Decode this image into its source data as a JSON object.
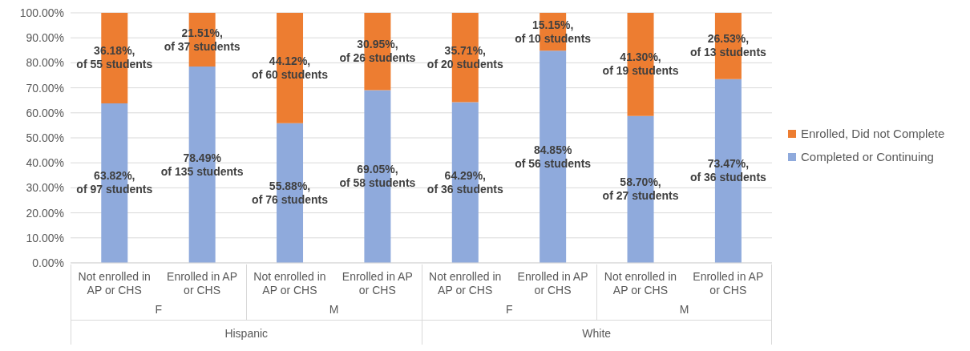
{
  "chart_data": {
    "type": "bar",
    "stacked": true,
    "categories": [
      "Not enrolled in AP or CHS",
      "Enrolled in AP or CHS",
      "Not enrolled in AP or CHS",
      "Enrolled in AP or CHS",
      "Not enrolled in AP or CHS",
      "Enrolled in AP or CHS",
      "Not enrolled in AP or CHS",
      "Enrolled in AP or CHS"
    ],
    "series": [
      {
        "name": "Completed or Continuing",
        "color": "#8faadc",
        "values": [
          63.82,
          78.49,
          55.88,
          69.05,
          64.29,
          84.85,
          58.7,
          73.47
        ],
        "value_labels": [
          "63.82%,\nof 97 students",
          "78.49%\nof 135 students",
          "55.88%,\nof 76 students",
          "69.05%,\nof 58 students",
          "64.29%,\nof 36 students",
          "84.85%\nof 56 students",
          "58.70%,\nof 27 students",
          "73.47%,\nof 36 students"
        ]
      },
      {
        "name": "Enrolled, Did not Complete",
        "color": "#ed7d31",
        "values": [
          36.18,
          21.51,
          44.12,
          30.95,
          35.71,
          15.15,
          41.3,
          26.53
        ],
        "value_labels": [
          "36.18%,\nof 55 students",
          "21.51%,\nof 37 students",
          "44.12%,\nof 60 students",
          "30.95%,\nof 26 students",
          "35.71%,\nof 20 students",
          "15.15%,\nof 10 students",
          "41.30%,\nof 19 students",
          "26.53%,\nof 13 students"
        ]
      }
    ],
    "annotations": [
      "F",
      "M",
      "F",
      "M",
      "Hispanic",
      "White"
    ],
    "ylim": [
      0,
      100
    ],
    "yticks": [
      {
        "value": 0,
        "label": "0.00%"
      },
      {
        "value": 10,
        "label": "10.00%"
      },
      {
        "value": 20,
        "label": "20.00%"
      },
      {
        "value": 30,
        "label": "30.00%"
      },
      {
        "value": 40,
        "label": "40.00%"
      },
      {
        "value": 50,
        "label": "50.00%"
      },
      {
        "value": 60,
        "label": "60.00%"
      },
      {
        "value": 70,
        "label": "70.00%"
      },
      {
        "value": 80,
        "label": "80.00%"
      },
      {
        "value": 90,
        "label": "90.00%"
      },
      {
        "value": 100,
        "label": "100.00%"
      }
    ],
    "grid": "y",
    "legend": "right"
  }
}
